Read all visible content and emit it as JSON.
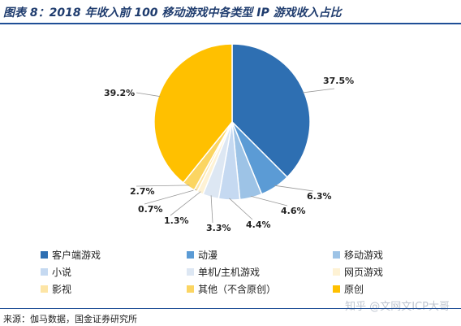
{
  "header": {
    "title": "图表 8：2018 年收入前 100 移动游戏中各类型 IP 游戏收入占比"
  },
  "footer": {
    "source": "来源：伽马数据，国金证券研究所",
    "watermark": "知乎 @文网文ICP大哥"
  },
  "chart_data": {
    "type": "pie",
    "title": "",
    "start": "12 o'clock",
    "direction": "clockwise",
    "legend_position": "bottom",
    "slices": [
      {
        "name": "客户端游戏",
        "value": 37.5,
        "label": "37.5%",
        "color": "#2e6fb2"
      },
      {
        "name": "动漫",
        "value": 6.3,
        "label": "6.3%",
        "color": "#5b9bd5"
      },
      {
        "name": "移动游戏",
        "value": 4.6,
        "label": "4.6%",
        "color": "#9dc3e6"
      },
      {
        "name": "小说",
        "value": 4.4,
        "label": "4.4%",
        "color": "#c5d9f1"
      },
      {
        "name": "单机/主机游戏",
        "value": 3.3,
        "label": "3.3%",
        "color": "#dde7f3"
      },
      {
        "name": "网页游戏",
        "value": 1.3,
        "label": "1.3%",
        "color": "#fef2d4"
      },
      {
        "name": "影视",
        "value": 0.7,
        "label": "0.7%",
        "color": "#fde5a6"
      },
      {
        "name": "其他（不含原创）",
        "value": 2.7,
        "label": "2.7%",
        "color": "#fbd562"
      },
      {
        "name": "原创",
        "value": 39.2,
        "label": "39.2%",
        "color": "#ffc000"
      }
    ]
  }
}
